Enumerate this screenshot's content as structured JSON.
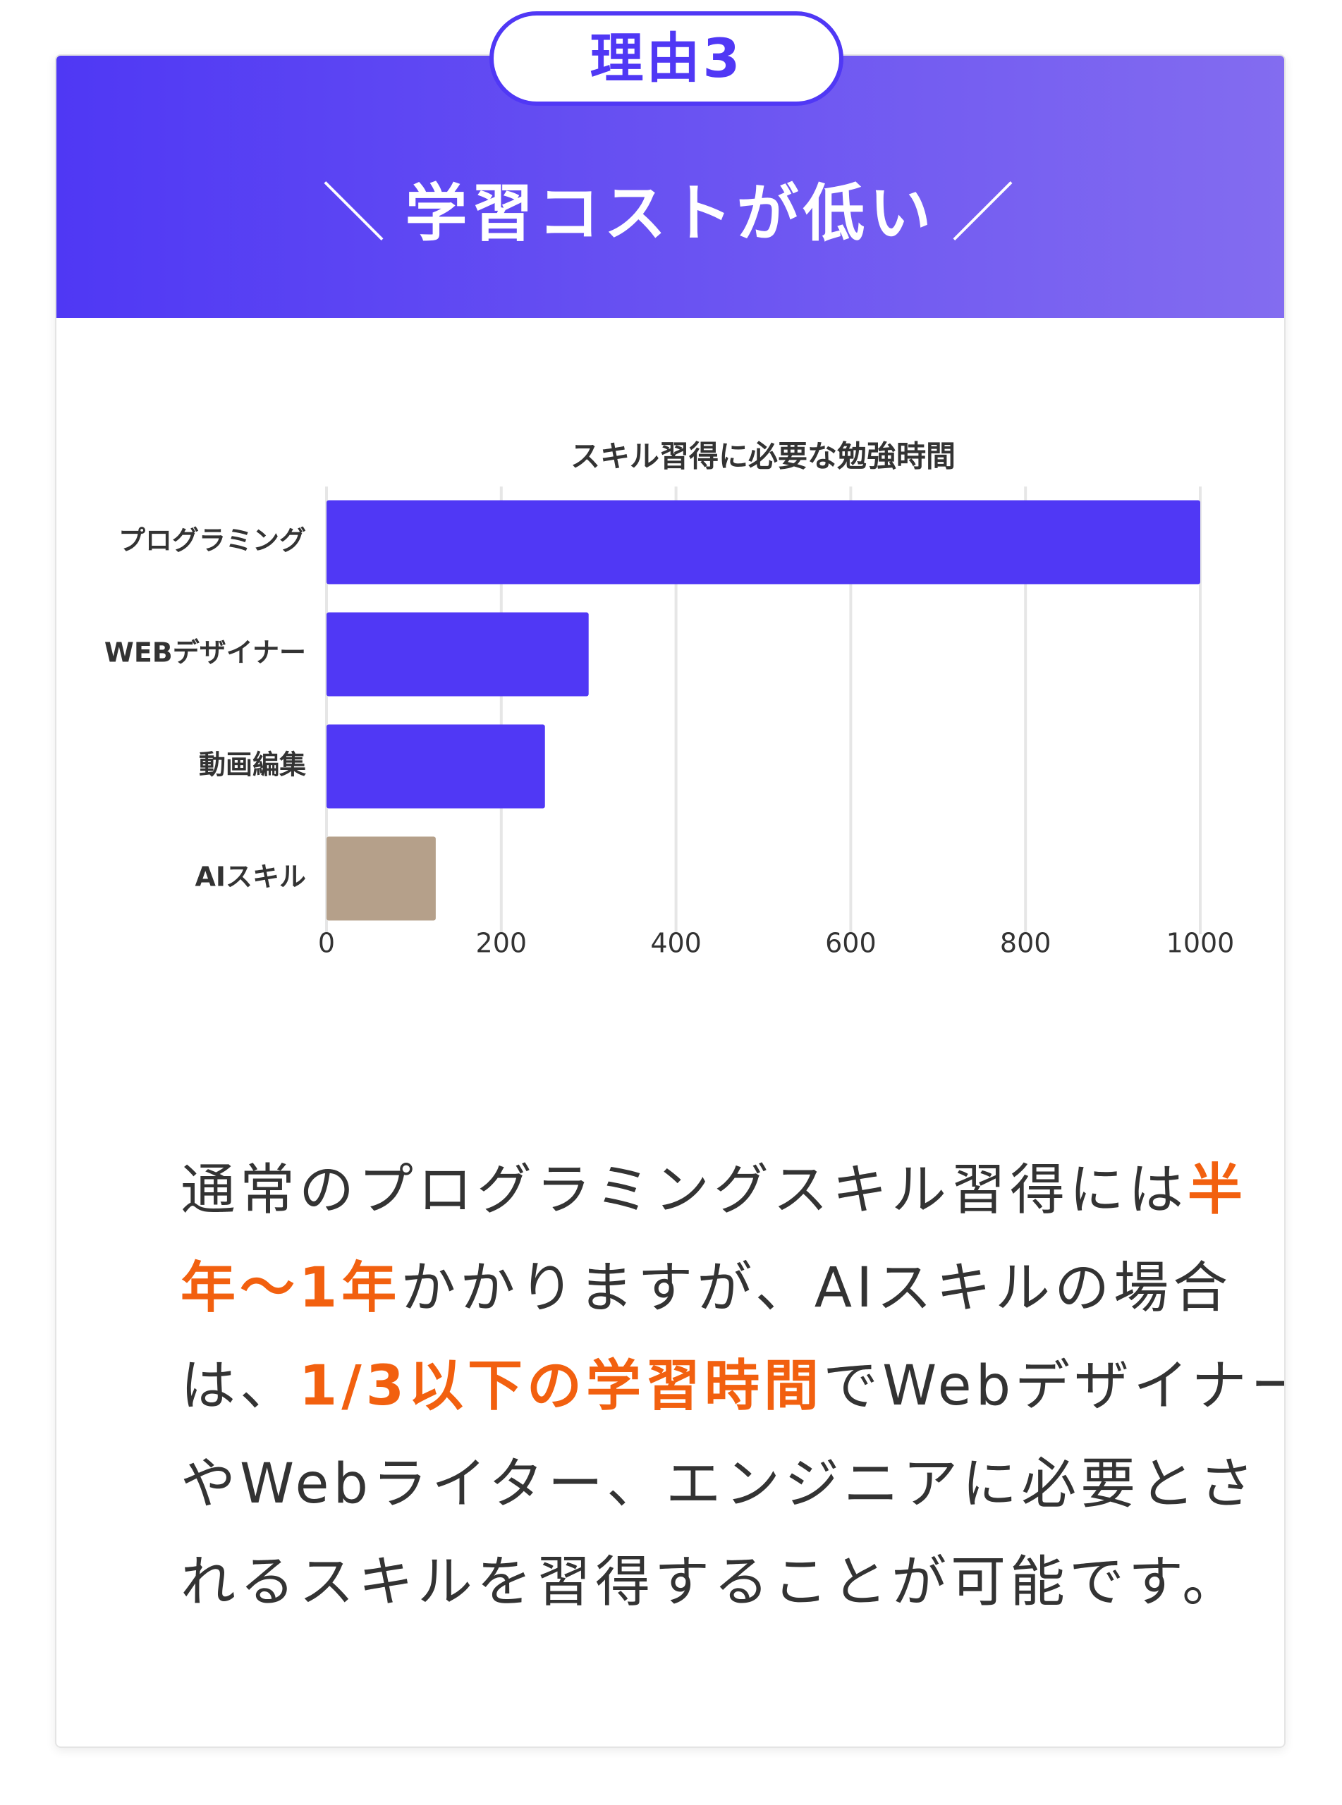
{
  "badge": "理由3",
  "heading": "学習コストが低い",
  "chart_data": {
    "type": "bar",
    "orientation": "horizontal",
    "title": "スキル習得に必要な勉強時間",
    "categories": [
      "プログラミング",
      "WEBデザイナー",
      "動画編集",
      "AIスキル"
    ],
    "values": [
      1000,
      300,
      250,
      125
    ],
    "colors": [
      "#5038f5",
      "#5038f5",
      "#5038f5",
      "#b5a08a"
    ],
    "xlim": [
      0,
      1000
    ],
    "xticks": [
      0,
      200,
      400,
      600,
      800,
      1000
    ],
    "grid": true
  },
  "body": {
    "lines": [
      [
        {
          "text": "通常のプログラミングスキル習得には",
          "color": "#333333"
        },
        {
          "text": "半",
          "color": "#f2600f"
        }
      ],
      [
        {
          "text": "年〜1年",
          "color": "#f2600f"
        },
        {
          "text": "かかりますが、AIスキルの場合",
          "color": "#333333"
        }
      ],
      [
        {
          "text": "は、",
          "color": "#333333"
        },
        {
          "text": "1/3以下の学習時間",
          "color": "#f2600f"
        },
        {
          "text": "でWebデザイナー",
          "color": "#333333"
        }
      ],
      [
        {
          "text": "やWebライター、エンジニアに必要とさ",
          "color": "#333333"
        }
      ],
      [
        {
          "text": "れるスキルを習得することが可能です。",
          "color": "#333333"
        }
      ]
    ]
  }
}
